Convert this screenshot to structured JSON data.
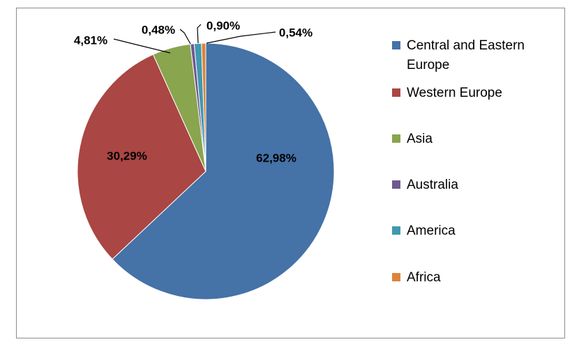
{
  "chart_data": {
    "type": "pie",
    "title": "",
    "categories": [
      "Central and Eastern Europe",
      "Western Europe",
      "Asia",
      "Australia",
      "America",
      "Africa"
    ],
    "values": [
      62.98,
      30.29,
      4.81,
      0.48,
      0.9,
      0.54
    ],
    "data_labels": [
      "62,98%",
      "30,29%",
      "4,81%",
      "0,48%",
      "0,90%",
      "0,54%"
    ],
    "colors": [
      "#4572a7",
      "#aa4643",
      "#89a54e",
      "#71588f",
      "#4198af",
      "#db843d"
    ],
    "legend_position": "right",
    "start_angle_deg": 0,
    "direction": "clockwise"
  }
}
